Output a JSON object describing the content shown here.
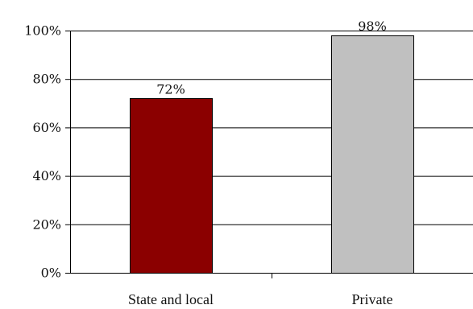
{
  "chart_data": {
    "type": "bar",
    "categories": [
      "State and local",
      "Private"
    ],
    "values": [
      72,
      98
    ],
    "data_labels": [
      "72%",
      "98%"
    ],
    "colors": [
      "#8b0000",
      "#c0c0c0"
    ],
    "ylim": [
      0,
      100
    ],
    "yticks": [
      0,
      20,
      40,
      60,
      80,
      100
    ],
    "ytick_labels": [
      "0%",
      "20%",
      "40%",
      "60%",
      "80%",
      "100%"
    ],
    "grid": true,
    "title": "",
    "xlabel": "",
    "ylabel": ""
  }
}
